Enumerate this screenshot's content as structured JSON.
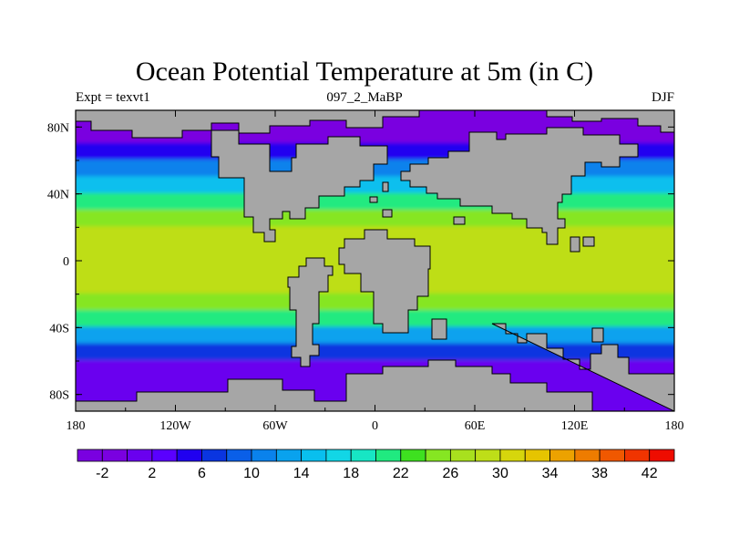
{
  "chart_data": {
    "type": "heatmap",
    "title": "Ocean Potential Temperature at 5m (in C)",
    "subtitle_left": "Expt = texvt1",
    "subtitle_center": "097_2_MaBP",
    "subtitle_right": "DJF",
    "units": "C",
    "x_axis": {
      "range": [
        -180,
        180
      ],
      "ticks": [
        -180,
        -120,
        -60,
        0,
        60,
        120,
        180
      ],
      "tick_labels": [
        "180",
        "120W",
        "60W",
        "0",
        "60E",
        "120E",
        "180"
      ]
    },
    "y_axis": {
      "range": [
        -90,
        90
      ],
      "ticks": [
        80,
        40,
        0,
        -40,
        -80
      ],
      "tick_labels": [
        "80N",
        "40N",
        "0",
        "40S",
        "80S"
      ]
    },
    "colorbar": {
      "levels": [
        -4,
        -2,
        0,
        2,
        4,
        6,
        8,
        10,
        12,
        14,
        16,
        18,
        20,
        22,
        24,
        26,
        28,
        30,
        32,
        34,
        36,
        38,
        40,
        42,
        44
      ],
      "labels": [
        "-2",
        "2",
        "6",
        "10",
        "14",
        "18",
        "22",
        "26",
        "30",
        "34",
        "38",
        "42"
      ],
      "colors": [
        "#7a00e0",
        "#7a00e0",
        "#6a00ef",
        "#5a00ff",
        "#2000f0",
        "#0a35e0",
        "#0a5fe8",
        "#0a82ec",
        "#09a2ee",
        "#09bfee",
        "#12d6e6",
        "#17e6c4",
        "#20ea80",
        "#3ee020",
        "#86e622",
        "#a8e01e",
        "#bede18",
        "#d6d60c",
        "#e6c400",
        "#eca200",
        "#ee7c00",
        "#f05800",
        "#f03400",
        "#ee0c00"
      ]
    },
    "zonal_band_temperatures": [
      {
        "lat_range": [
          90,
          70
        ],
        "temp": -2
      },
      {
        "lat_range": [
          70,
          60
        ],
        "temp": 4
      },
      {
        "lat_range": [
          60,
          50
        ],
        "temp": 10
      },
      {
        "lat_range": [
          50,
          40
        ],
        "temp": 15
      },
      {
        "lat_range": [
          40,
          30
        ],
        "temp": 20
      },
      {
        "lat_range": [
          30,
          20
        ],
        "temp": 25
      },
      {
        "lat_range": [
          20,
          -20
        ],
        "temp": 29
      },
      {
        "lat_range": [
          -20,
          -30
        ],
        "temp": 25
      },
      {
        "lat_range": [
          -30,
          -40
        ],
        "temp": 20
      },
      {
        "lat_range": [
          -40,
          -50
        ],
        "temp": 13
      },
      {
        "lat_range": [
          -50,
          -60
        ],
        "temp": 6
      },
      {
        "lat_range": [
          -60,
          -90
        ],
        "temp": 0
      }
    ],
    "land_color": "#a6a6a6"
  }
}
